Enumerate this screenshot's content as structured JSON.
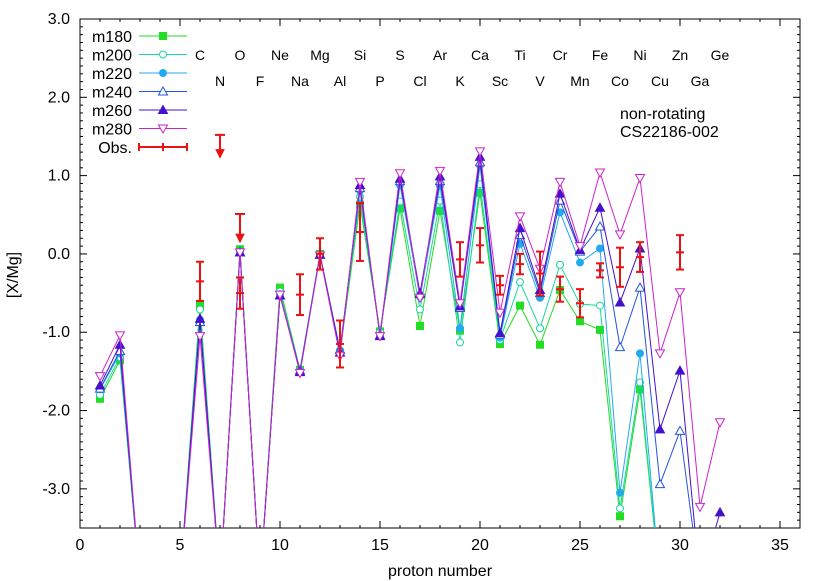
{
  "chart_data": {
    "type": "line",
    "xlabel": "proton number",
    "ylabel": "[X/Mg]",
    "xlim": [
      0,
      36
    ],
    "ylim": [
      -3.5,
      3.0
    ],
    "xticks": [
      0,
      5,
      10,
      15,
      20,
      25,
      30,
      35
    ],
    "xtick_labels": [
      "0",
      "5",
      "10",
      "15",
      "20",
      "25",
      "30",
      "35"
    ],
    "yticks": [
      3.0,
      2.0,
      1.0,
      0.0,
      -1.0,
      -2.0,
      -3.0
    ],
    "ytick_labels": [
      "3.0",
      "2.0",
      "1.0",
      "0.0",
      "-1.0",
      "-2.0",
      "-3.0"
    ],
    "grid": false,
    "legend_position": "top-left",
    "annotations": [
      "non-rotating",
      "CS22186-002"
    ],
    "element_labels": [
      {
        "z": 6,
        "label": "C",
        "row": 1
      },
      {
        "z": 7,
        "label": "N",
        "row": 2
      },
      {
        "z": 8,
        "label": "O",
        "row": 1
      },
      {
        "z": 9,
        "label": "F",
        "row": 2
      },
      {
        "z": 10,
        "label": "Ne",
        "row": 1
      },
      {
        "z": 11,
        "label": "Na",
        "row": 2
      },
      {
        "z": 12,
        "label": "Mg",
        "row": 1
      },
      {
        "z": 13,
        "label": "Al",
        "row": 2
      },
      {
        "z": 14,
        "label": "Si",
        "row": 1
      },
      {
        "z": 15,
        "label": "P",
        "row": 2
      },
      {
        "z": 16,
        "label": "S",
        "row": 1
      },
      {
        "z": 17,
        "label": "Cl",
        "row": 2
      },
      {
        "z": 18,
        "label": "Ar",
        "row": 1
      },
      {
        "z": 19,
        "label": "K",
        "row": 2
      },
      {
        "z": 20,
        "label": "Ca",
        "row": 1
      },
      {
        "z": 21,
        "label": "Sc",
        "row": 2
      },
      {
        "z": 22,
        "label": "Ti",
        "row": 1
      },
      {
        "z": 23,
        "label": "V",
        "row": 2
      },
      {
        "z": 24,
        "label": "Cr",
        "row": 1
      },
      {
        "z": 25,
        "label": "Mn",
        "row": 2
      },
      {
        "z": 26,
        "label": "Fe",
        "row": 1
      },
      {
        "z": 27,
        "label": "Co",
        "row": 2
      },
      {
        "z": 28,
        "label": "Ni",
        "row": 1
      },
      {
        "z": 29,
        "label": "Cu",
        "row": 2
      },
      {
        "z": 30,
        "label": "Zn",
        "row": 1
      },
      {
        "z": 31,
        "label": "Ga",
        "row": 2
      },
      {
        "z": 32,
        "label": "Ge",
        "row": 1
      }
    ],
    "x": [
      1,
      2,
      3,
      4,
      5,
      6,
      7,
      8,
      9,
      10,
      11,
      12,
      13,
      14,
      15,
      16,
      17,
      18,
      19,
      20,
      21,
      22,
      23,
      24,
      25,
      26,
      27,
      28,
      29,
      30,
      31,
      32
    ],
    "series": [
      {
        "name": "m180",
        "color": "#22dd22",
        "marker": "square-filled",
        "values": [
          -1.85,
          -1.36,
          -4.2,
          null,
          -4.2,
          -0.64,
          -4.2,
          0.06,
          -4.2,
          -0.43,
          -1.48,
          0.0,
          -1.26,
          0.63,
          -0.99,
          0.58,
          -0.92,
          0.55,
          -0.98,
          0.78,
          -1.15,
          -0.66,
          -1.16,
          -0.46,
          -0.86,
          -0.97,
          -3.35,
          -1.73,
          -4.2,
          null,
          null,
          null
        ]
      },
      {
        "name": "m200",
        "color": "#1ad6a0",
        "marker": "circle-open",
        "values": [
          -1.8,
          -1.32,
          -4.2,
          null,
          -4.2,
          -0.71,
          -4.2,
          0.03,
          -4.2,
          -0.48,
          -1.49,
          -0.01,
          -1.24,
          0.73,
          -1.0,
          0.67,
          -0.71,
          0.68,
          -1.13,
          0.89,
          -1.1,
          -0.36,
          -0.95,
          -0.14,
          -0.64,
          -0.66,
          -3.25,
          -1.64,
          -4.2,
          null,
          null,
          null
        ]
      },
      {
        "name": "m220",
        "color": "#22aaee",
        "marker": "circle-filled",
        "values": [
          -1.73,
          -1.27,
          -4.2,
          null,
          -4.2,
          -0.84,
          -4.2,
          0.02,
          -4.2,
          -0.52,
          -1.49,
          -0.01,
          -1.23,
          0.81,
          -1.04,
          0.88,
          -0.55,
          0.87,
          -0.95,
          1.13,
          -1.07,
          0.13,
          -0.56,
          0.53,
          -0.11,
          0.07,
          -3.05,
          -1.27,
          -4.2,
          null,
          null,
          null
        ]
      },
      {
        "name": "m240",
        "color": "#2255dd",
        "marker": "triangle-open",
        "values": [
          -1.72,
          -1.24,
          -4.2,
          null,
          -4.2,
          -0.87,
          -4.2,
          0.02,
          -4.2,
          -0.53,
          -1.49,
          -0.01,
          -1.23,
          0.84,
          -1.04,
          0.93,
          -0.5,
          0.93,
          -0.69,
          1.17,
          -1.03,
          0.24,
          -0.5,
          0.68,
          0.03,
          0.35,
          -1.19,
          -0.43,
          -2.94,
          -2.26,
          -4.2,
          null
        ]
      },
      {
        "name": "m260",
        "color": "#4411cc",
        "marker": "triangle-filled",
        "values": [
          -1.68,
          -1.16,
          -4.2,
          null,
          -4.2,
          -0.83,
          -4.2,
          0.02,
          -4.2,
          -0.53,
          -1.51,
          -0.01,
          -1.26,
          0.88,
          -1.05,
          0.96,
          -0.51,
          0.99,
          -0.67,
          1.24,
          -1.01,
          0.33,
          -0.46,
          0.77,
          0.05,
          0.59,
          -0.62,
          0.07,
          -2.24,
          -1.49,
          -4.2,
          -3.3
        ]
      },
      {
        "name": "m280",
        "color": "#cc22cc",
        "marker": "triangle-down-open",
        "values": [
          -1.56,
          -1.04,
          -4.2,
          null,
          -4.2,
          -1.05,
          -4.2,
          0.02,
          -4.2,
          -0.52,
          -1.52,
          -0.02,
          -1.3,
          0.92,
          -1.05,
          1.03,
          -0.56,
          1.06,
          -0.63,
          1.31,
          -0.75,
          0.48,
          -0.19,
          0.92,
          0.1,
          1.04,
          0.25,
          0.97,
          -1.27,
          -0.49,
          -3.23,
          -2.15
        ]
      }
    ],
    "observations": {
      "name": "Obs.",
      "color": "#ee1111",
      "points": [
        {
          "x": 6,
          "y": -0.35,
          "err": 0.25
        },
        {
          "x": 8,
          "y": -0.5,
          "err": 0.2
        },
        {
          "x": 11,
          "y": -0.52,
          "err": 0.26
        },
        {
          "x": 12,
          "y": 0.0,
          "err": 0.2
        },
        {
          "x": 13,
          "y": -1.15,
          "err": 0.3
        },
        {
          "x": 14,
          "y": 0.28,
          "err": 0.37
        },
        {
          "x": 19,
          "y": -0.07,
          "err": 0.22
        },
        {
          "x": 20,
          "y": 0.11,
          "err": 0.22
        },
        {
          "x": 21,
          "y": -0.4,
          "err": 0.12
        },
        {
          "x": 22,
          "y": -0.13,
          "err": 0.13
        },
        {
          "x": 23,
          "y": -0.25,
          "err": 0.28
        },
        {
          "x": 24,
          "y": -0.45,
          "err": 0.16
        },
        {
          "x": 25,
          "y": -0.63,
          "err": 0.18
        },
        {
          "x": 26,
          "y": -0.21,
          "err": 0.09
        },
        {
          "x": 27,
          "y": -0.17,
          "err": 0.25
        },
        {
          "x": 28,
          "y": -0.04,
          "err": 0.19
        },
        {
          "x": 30,
          "y": 0.02,
          "err": 0.22
        }
      ],
      "upper_limits": [
        {
          "x": 7,
          "y": 1.52,
          "tip": 1.23
        },
        {
          "x": 8,
          "y": 0.51,
          "tip": 0.15
        }
      ]
    }
  }
}
